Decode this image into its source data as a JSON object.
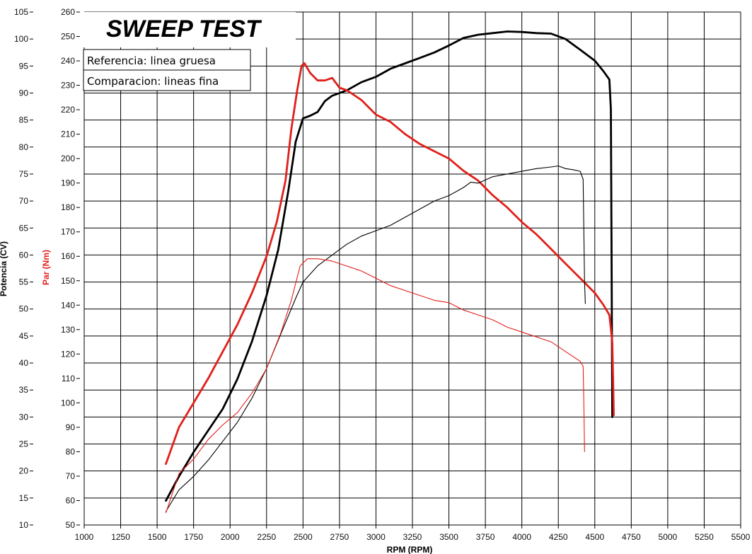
{
  "chart_data": {
    "type": "line",
    "title": "SWEEP TEST",
    "legend": [
      "Referencia: linea gruesa",
      "Comparacion: lineas fina"
    ],
    "xlabel": "RPM (RPM)",
    "ylabel_left": "Potencia (CV)",
    "ylabel_right": "Par (Nm)",
    "xlim": [
      1000,
      5500
    ],
    "ylim_power": [
      10,
      105
    ],
    "ylim_torque": [
      50,
      260
    ],
    "x_ticks": [
      1000,
      1250,
      1500,
      1750,
      2000,
      2250,
      2500,
      2750,
      3000,
      3250,
      3500,
      3750,
      4000,
      4250,
      4500,
      4750,
      5000,
      5250,
      5500
    ],
    "power_ticks": [
      10,
      15,
      20,
      25,
      30,
      35,
      40,
      45,
      50,
      55,
      60,
      65,
      70,
      75,
      80,
      85,
      90,
      95,
      100,
      105
    ],
    "torque_ticks": [
      50,
      60,
      70,
      80,
      90,
      100,
      110,
      120,
      130,
      140,
      150,
      160,
      170,
      180,
      190,
      200,
      210,
      220,
      230,
      240,
      250,
      260
    ],
    "colors": {
      "power": "#000000",
      "torque": "#e0201b",
      "grid": "#000000"
    },
    "series": [
      {
        "name": "Potencia referencia",
        "axis": "power",
        "style": "thick",
        "color": "#000000",
        "points": [
          [
            1560,
            14.5
          ],
          [
            1650,
            19
          ],
          [
            1750,
            23.5
          ],
          [
            1850,
            27.5
          ],
          [
            1950,
            31.5
          ],
          [
            2050,
            37
          ],
          [
            2150,
            44
          ],
          [
            2250,
            52.5
          ],
          [
            2330,
            61
          ],
          [
            2400,
            72
          ],
          [
            2450,
            81
          ],
          [
            2500,
            85.3
          ],
          [
            2550,
            85.8
          ],
          [
            2600,
            86.5
          ],
          [
            2650,
            88.5
          ],
          [
            2700,
            89.5
          ],
          [
            2800,
            90.5
          ],
          [
            2900,
            92
          ],
          [
            3000,
            93
          ],
          [
            3100,
            94.5
          ],
          [
            3200,
            95.5
          ],
          [
            3300,
            96.5
          ],
          [
            3400,
            97.5
          ],
          [
            3500,
            98.8
          ],
          [
            3600,
            100.2
          ],
          [
            3700,
            100.8
          ],
          [
            3800,
            101.1
          ],
          [
            3900,
            101.4
          ],
          [
            4000,
            101.3
          ],
          [
            4100,
            101.1
          ],
          [
            4200,
            101
          ],
          [
            4300,
            100
          ],
          [
            4400,
            98
          ],
          [
            4500,
            96
          ],
          [
            4560,
            94
          ],
          [
            4600,
            92.5
          ],
          [
            4610,
            87
          ],
          [
            4615,
            60
          ],
          [
            4620,
            30
          ]
        ],
        "y_unit": "CV"
      },
      {
        "name": "Par referencia",
        "axis": "torque",
        "style": "thick",
        "color": "#e0201b",
        "points": [
          [
            1560,
            75
          ],
          [
            1650,
            90
          ],
          [
            1750,
            100
          ],
          [
            1850,
            110
          ],
          [
            1950,
            121
          ],
          [
            2050,
            132
          ],
          [
            2150,
            145
          ],
          [
            2250,
            160
          ],
          [
            2320,
            174
          ],
          [
            2380,
            191
          ],
          [
            2420,
            212
          ],
          [
            2460,
            228
          ],
          [
            2490,
            238
          ],
          [
            2510,
            239
          ],
          [
            2550,
            235
          ],
          [
            2600,
            232
          ],
          [
            2650,
            232
          ],
          [
            2700,
            233
          ],
          [
            2750,
            229
          ],
          [
            2800,
            228
          ],
          [
            2900,
            224
          ],
          [
            3000,
            218
          ],
          [
            3100,
            215
          ],
          [
            3200,
            210
          ],
          [
            3300,
            206
          ],
          [
            3400,
            203
          ],
          [
            3500,
            200
          ],
          [
            3600,
            195
          ],
          [
            3700,
            191
          ],
          [
            3800,
            185
          ],
          [
            3900,
            180
          ],
          [
            4000,
            174
          ],
          [
            4100,
            169
          ],
          [
            4200,
            163
          ],
          [
            4300,
            157
          ],
          [
            4400,
            151
          ],
          [
            4500,
            145
          ],
          [
            4560,
            140
          ],
          [
            4600,
            136
          ],
          [
            4620,
            125
          ],
          [
            4625,
            110
          ],
          [
            4630,
            95
          ]
        ],
        "y_unit": "Nm"
      },
      {
        "name": "Potencia comparacion",
        "axis": "power",
        "style": "thin",
        "color": "#000000",
        "points": [
          [
            1560,
            12.5
          ],
          [
            1650,
            16.5
          ],
          [
            1750,
            19
          ],
          [
            1850,
            22
          ],
          [
            1950,
            25.5
          ],
          [
            2050,
            29
          ],
          [
            2150,
            33.5
          ],
          [
            2250,
            39
          ],
          [
            2350,
            45.5
          ],
          [
            2450,
            52
          ],
          [
            2500,
            55
          ],
          [
            2600,
            58
          ],
          [
            2700,
            60
          ],
          [
            2800,
            62
          ],
          [
            2900,
            63.5
          ],
          [
            3000,
            64.5
          ],
          [
            3100,
            65.5
          ],
          [
            3200,
            67
          ],
          [
            3300,
            68.5
          ],
          [
            3400,
            70
          ],
          [
            3500,
            71
          ],
          [
            3600,
            72.5
          ],
          [
            3650,
            73.5
          ],
          [
            3700,
            73.3
          ],
          [
            3800,
            74.5
          ],
          [
            3900,
            75
          ],
          [
            4000,
            75.5
          ],
          [
            4100,
            76
          ],
          [
            4200,
            76.3
          ],
          [
            4250,
            76.5
          ],
          [
            4300,
            76
          ],
          [
            4350,
            75.8
          ],
          [
            4400,
            75.5
          ],
          [
            4420,
            74
          ],
          [
            4430,
            55
          ],
          [
            4435,
            51
          ]
        ],
        "y_unit": "CV"
      },
      {
        "name": "Par comparacion",
        "axis": "torque",
        "style": "thin",
        "color": "#e0201b",
        "points": [
          [
            1560,
            55
          ],
          [
            1650,
            71
          ],
          [
            1750,
            77
          ],
          [
            1850,
            85
          ],
          [
            1950,
            91
          ],
          [
            2050,
            96
          ],
          [
            2150,
            104
          ],
          [
            2250,
            114
          ],
          [
            2350,
            129
          ],
          [
            2420,
            142
          ],
          [
            2480,
            156
          ],
          [
            2530,
            159
          ],
          [
            2600,
            159
          ],
          [
            2700,
            158
          ],
          [
            2800,
            156
          ],
          [
            2900,
            154
          ],
          [
            3000,
            151
          ],
          [
            3100,
            148
          ],
          [
            3200,
            146
          ],
          [
            3300,
            144
          ],
          [
            3400,
            142
          ],
          [
            3500,
            141
          ],
          [
            3600,
            138
          ],
          [
            3700,
            136
          ],
          [
            3800,
            134
          ],
          [
            3900,
            131
          ],
          [
            4000,
            129
          ],
          [
            4100,
            127
          ],
          [
            4200,
            125
          ],
          [
            4300,
            121
          ],
          [
            4400,
            117
          ],
          [
            4420,
            115
          ],
          [
            4425,
            100
          ],
          [
            4430,
            80
          ]
        ],
        "y_unit": "Nm"
      }
    ]
  }
}
